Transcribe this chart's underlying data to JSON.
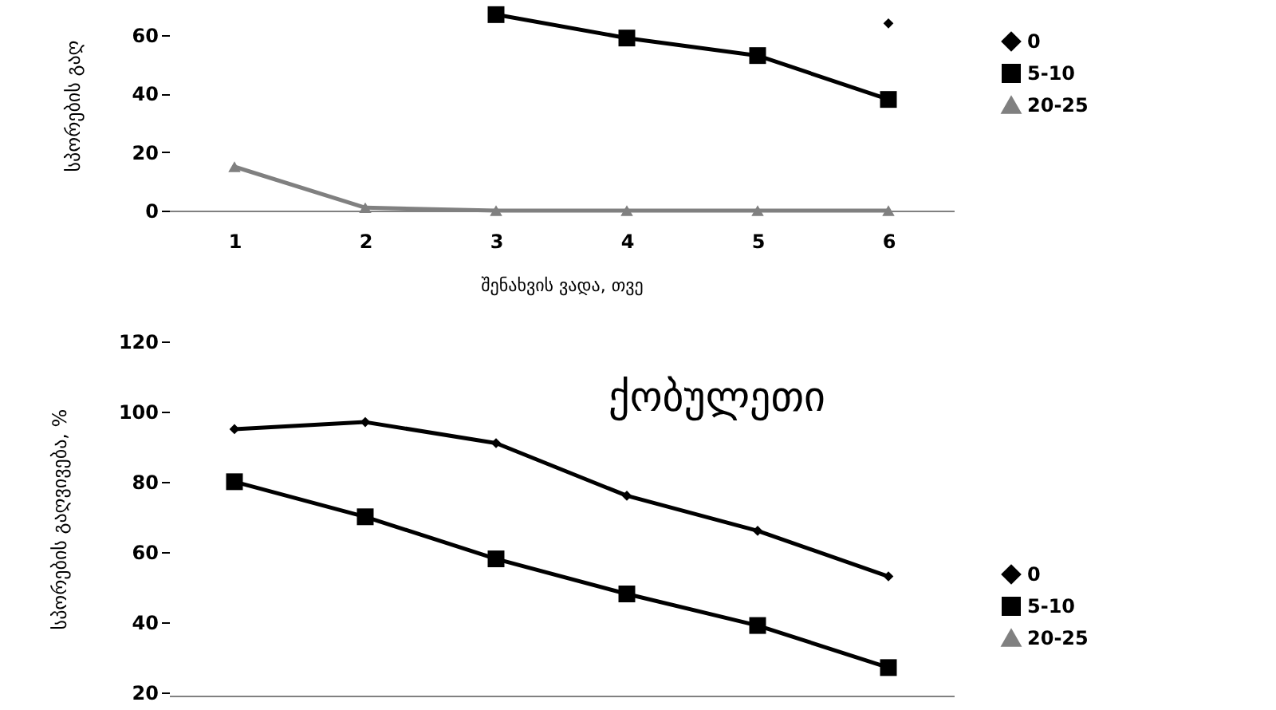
{
  "chart_data": [
    {
      "type": "line",
      "xlabel": "შენახვის ვადა, თვე",
      "ylabel": "სპორების გაღ",
      "categories": [
        "1",
        "2",
        "3",
        "4",
        "5",
        "6"
      ],
      "ylim": [
        0,
        72
      ],
      "yticks": [
        0,
        20,
        40,
        60
      ],
      "grid": false,
      "legend": "right",
      "series": [
        {
          "name": "0",
          "color": "#000000",
          "marker": "diamond",
          "values": [
            null,
            null,
            null,
            null,
            null,
            64
          ]
        },
        {
          "name": "5-10",
          "color": "#000000",
          "marker": "square",
          "values": [
            null,
            null,
            67,
            59,
            53,
            38
          ]
        },
        {
          "name": "20-25",
          "color": "#808080",
          "marker": "triangle",
          "values": [
            15,
            1,
            0,
            0,
            0,
            0
          ]
        }
      ]
    },
    {
      "type": "line",
      "ylabel": "სპორების გაღვივება, %",
      "annotations": [
        "ქობულეთი"
      ],
      "categories": [
        null,
        null,
        null,
        null,
        null,
        null
      ],
      "ylim": [
        19,
        120
      ],
      "yticks": [
        20,
        40,
        60,
        80,
        100,
        120
      ],
      "tick_labels": "y",
      "grid": false,
      "legend": "bottom right",
      "series": [
        {
          "name": "0",
          "color": "#000000",
          "marker": "diamond",
          "values": [
            95,
            97,
            91,
            76,
            66,
            53
          ]
        },
        {
          "name": "5-10",
          "color": "#000000",
          "marker": "square",
          "values": [
            80,
            70,
            58,
            48,
            39,
            27
          ]
        },
        {
          "name": "20-25",
          "color": "#808080",
          "marker": "triangle",
          "values": [
            null,
            null,
            null,
            null,
            null,
            null
          ]
        }
      ]
    }
  ]
}
